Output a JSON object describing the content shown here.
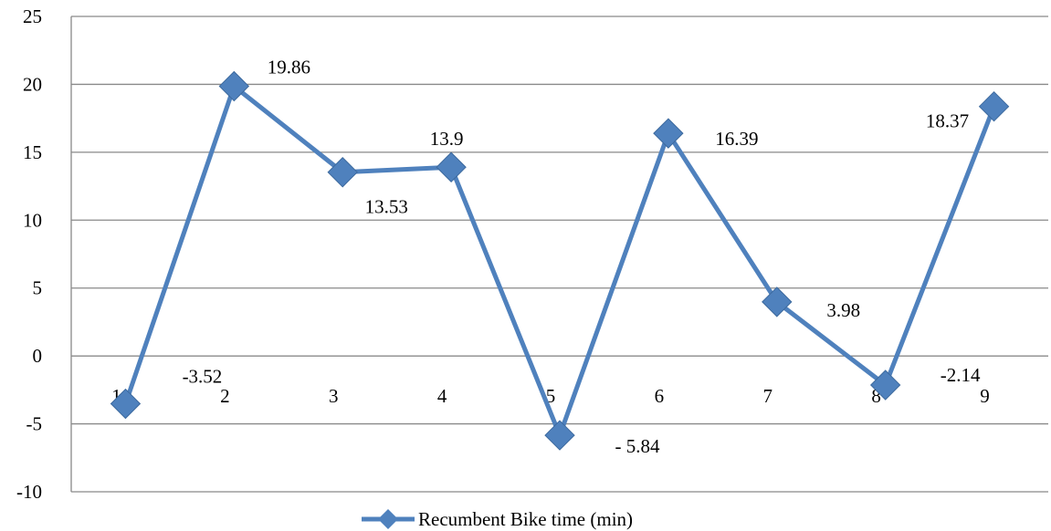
{
  "chart_data": {
    "type": "line",
    "title": "",
    "xlabel": "",
    "ylabel": "",
    "x": [
      1,
      2,
      3,
      4,
      5,
      6,
      7,
      8,
      9
    ],
    "x_tick_labels": [
      "1",
      "2",
      "3",
      "4",
      "5",
      "6",
      "7",
      "8",
      "9"
    ],
    "ylim": [
      -10,
      25
    ],
    "y_ticks": [
      -10,
      -5,
      0,
      5,
      10,
      15,
      20,
      25
    ],
    "grid": true,
    "legend_position": "bottom",
    "series": [
      {
        "name": "Recumbent Bike time (min)",
        "color": "#4f81bd",
        "marker": "diamond",
        "values": [
          -3.52,
          19.86,
          13.53,
          13.9,
          -5.84,
          16.39,
          3.98,
          -2.14,
          18.37
        ],
        "data_labels": [
          "-3.52",
          "19.86",
          "13.53",
          "13.9",
          "- 5.84",
          "16.39",
          "3.98",
          "-2.14",
          "18.37"
        ]
      }
    ]
  }
}
